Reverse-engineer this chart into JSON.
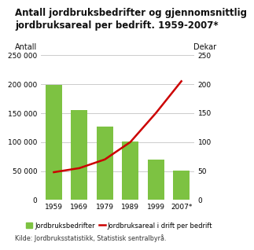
{
  "title": "Antall jordbruksbedrifter og gjennomsnittlig\njordbruksareal per bedrift. 1959-2007*",
  "years": [
    "1959",
    "1969",
    "1979",
    "1989",
    "1999",
    "2007*"
  ],
  "bar_values": [
    198000,
    155000,
    127000,
    101000,
    70000,
    51000
  ],
  "line_values": [
    48,
    55,
    70,
    100,
    150,
    205
  ],
  "bar_color": "#7dc242",
  "line_color": "#cc0000",
  "label_left": "Antall",
  "label_right": "Dekar",
  "ylim_left": [
    0,
    250000
  ],
  "ylim_right": [
    0,
    250
  ],
  "yticks_left": [
    0,
    50000,
    100000,
    150000,
    200000,
    250000
  ],
  "yticks_right": [
    0,
    50,
    100,
    150,
    200,
    250
  ],
  "ytick_labels_left": [
    "0",
    "50 000",
    "100 000",
    "150 000",
    "200 000",
    "250 000"
  ],
  "ytick_labels_right": [
    "0",
    "50",
    "100",
    "150",
    "200",
    "250"
  ],
  "legend_bar": "Jordbruksbedrifter",
  "legend_line": "Jordbruksareal i drift per bedrift",
  "source": "Kilde: Jordbruksstatistikk, Statistisk sentralbyrå.",
  "background_color": "#ffffff",
  "grid_color": "#cccccc",
  "title_fontsize": 8.5,
  "tick_fontsize": 6.5,
  "label_fontsize": 7.0,
  "legend_fontsize": 6.0,
  "source_fontsize": 5.8
}
